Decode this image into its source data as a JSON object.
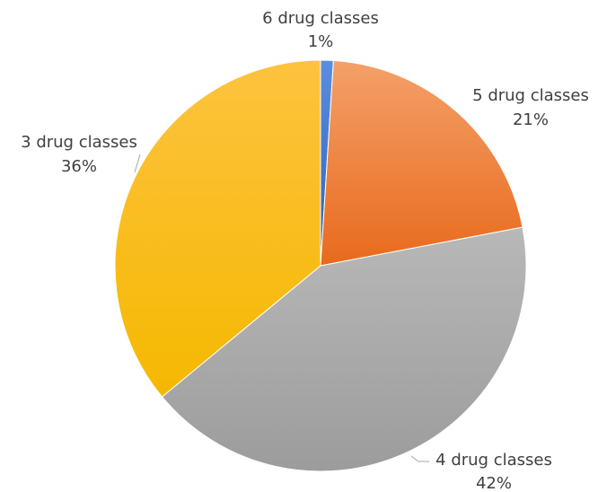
{
  "chart_data": {
    "type": "pie",
    "title": "",
    "start_angle_deg": 0,
    "direction": "clockwise",
    "slices": [
      {
        "label": "6 drug classes",
        "value": 1,
        "value_label": "1%",
        "color": "#4472c4"
      },
      {
        "label": "5 drug classes",
        "value": 21,
        "value_label": "21%",
        "color": "#ed7d31"
      },
      {
        "label": "4 drug classes",
        "value": 42,
        "value_label": "42%",
        "color": "#a5a5a5"
      },
      {
        "label": "3 drug classes",
        "value": 36,
        "value_label": "36%",
        "color": "#ffc000"
      }
    ],
    "legend": "none",
    "data_labels": "outside"
  }
}
